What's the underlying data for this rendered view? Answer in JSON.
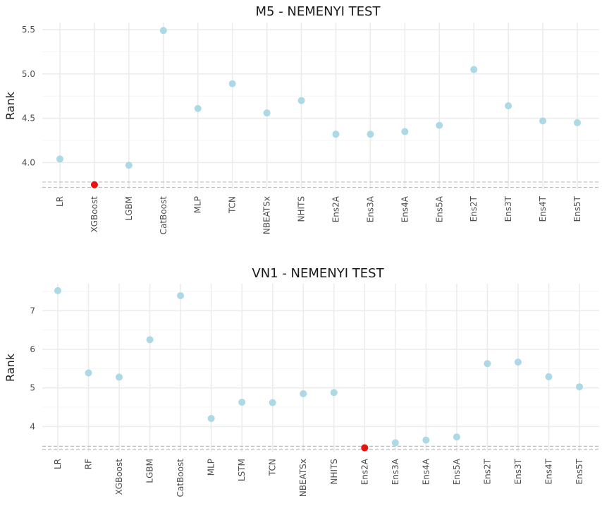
{
  "chart_data": [
    {
      "type": "scatter",
      "title": "M5  - NEMENYI TEST",
      "ylabel": "Rank",
      "xlabel": "",
      "ylim": [
        3.7,
        5.58
      ],
      "yticks": [
        "4.0",
        "4.5",
        "5.0",
        "5.5"
      ],
      "ytick_values": [
        4.0,
        4.5,
        5.0,
        5.5
      ],
      "categories": [
        "LR",
        "XGBoost",
        "LGBM",
        "CatBoost",
        "MLP",
        "TCN",
        "NBEATSx",
        "NHITS",
        "Ens2A",
        "Ens3A",
        "Ens4A",
        "Ens5A",
        "Ens2T",
        "Ens3T",
        "Ens4T",
        "Ens5T"
      ],
      "values": [
        4.04,
        3.75,
        3.97,
        5.49,
        4.61,
        4.89,
        4.56,
        4.7,
        4.32,
        4.32,
        4.35,
        4.42,
        5.05,
        4.64,
        4.47,
        4.45
      ],
      "best_index": 1,
      "critical_band": [
        3.72,
        3.78
      ],
      "point_color": "#add8e6",
      "best_color": "#e8130f",
      "grid": true
    },
    {
      "type": "scatter",
      "title": "VN1  - NEMENYI TEST",
      "ylabel": "Rank",
      "xlabel": "",
      "ylim": [
        3.35,
        7.7
      ],
      "yticks": [
        "4",
        "5",
        "6",
        "7"
      ],
      "ytick_values": [
        4,
        5,
        6,
        7
      ],
      "categories": [
        "LR",
        "RF",
        "XGBoost",
        "LGBM",
        "CatBoost",
        "MLP",
        "LSTM",
        "TCN",
        "NBEATSx",
        "NHITS",
        "Ens2A",
        "Ens3A",
        "Ens4A",
        "Ens5A",
        "Ens2T",
        "Ens3T",
        "Ens4T",
        "Ens5T"
      ],
      "values": [
        7.52,
        5.39,
        5.28,
        6.25,
        7.39,
        4.21,
        4.63,
        4.62,
        4.85,
        4.88,
        3.45,
        3.58,
        3.65,
        3.73,
        5.63,
        5.67,
        5.29,
        5.03
      ],
      "best_index": 10,
      "critical_band": [
        3.41,
        3.49
      ],
      "point_color": "#add8e6",
      "best_color": "#e8130f",
      "grid": true
    }
  ]
}
